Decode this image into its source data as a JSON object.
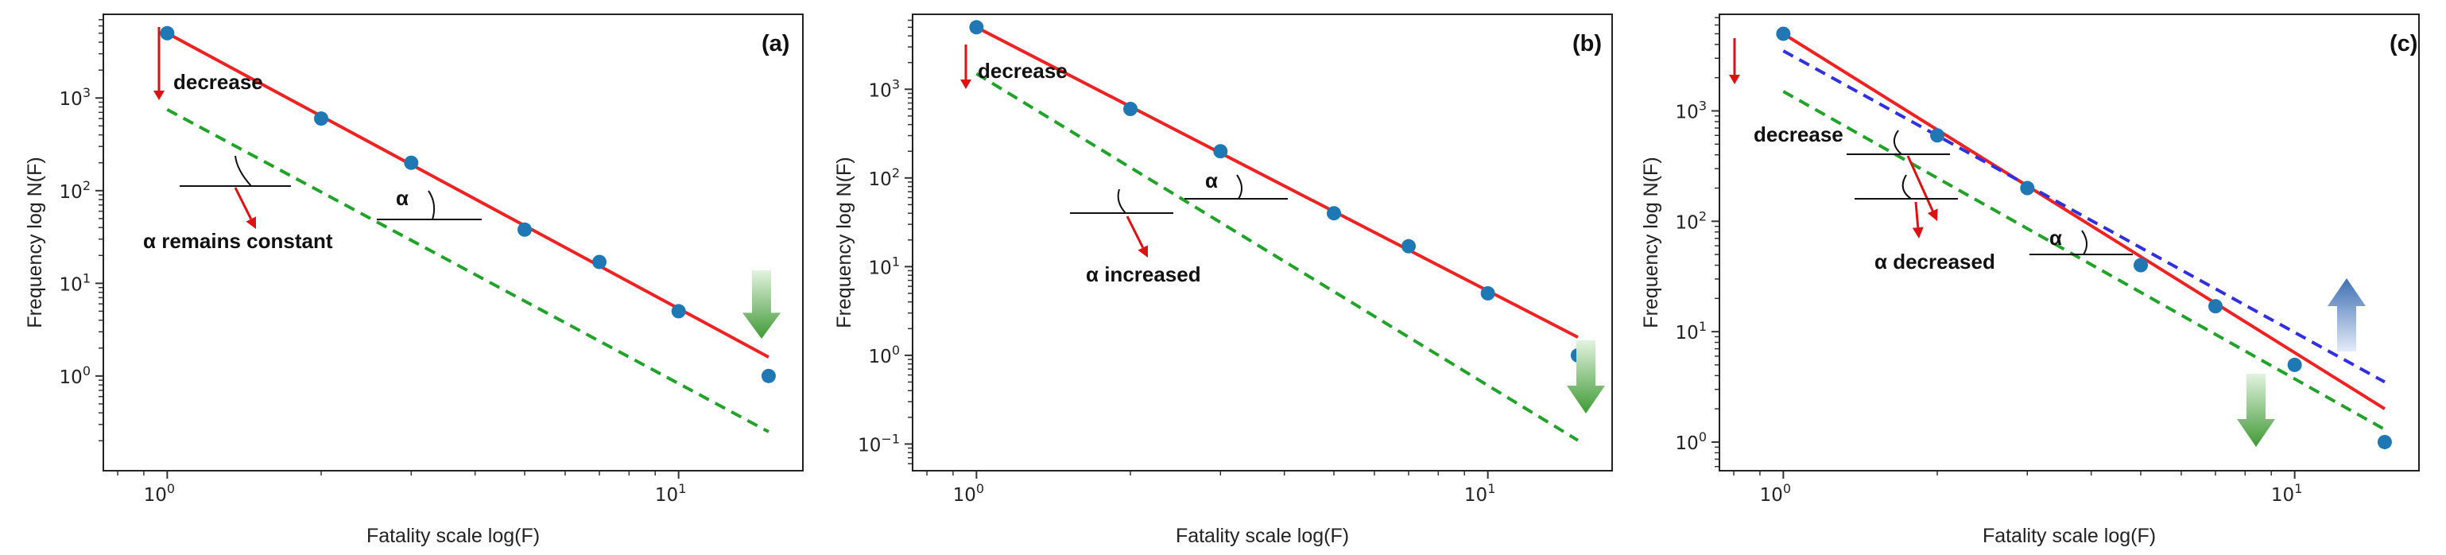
{
  "figure": {
    "colors": {
      "points": "#1f77b4",
      "fit_line": "#ee2222",
      "shifted_line": "#22a22a",
      "blue_line": "#3030dd",
      "annot_arrow": "#dd1111"
    }
  },
  "chart_data": [
    {
      "type": "scatter",
      "panel": "(a)",
      "xlabel": "Fatality scale log(F)",
      "ylabel": "Frequency log N(F)",
      "xscale": "log",
      "yscale": "log",
      "xlim": [
        0.75,
        17.5
      ],
      "ylim": [
        0.095,
        8000
      ],
      "x_ticks": [
        {
          "value": 1,
          "base": "10",
          "exp": "0"
        },
        {
          "value": 10,
          "base": "10",
          "exp": "1"
        }
      ],
      "y_ticks": [
        {
          "value": 1,
          "base": "10",
          "exp": "0"
        },
        {
          "value": 10,
          "base": "10",
          "exp": "1"
        },
        {
          "value": 100,
          "base": "10",
          "exp": "2"
        },
        {
          "value": 1000,
          "base": "10",
          "exp": "3"
        }
      ],
      "points": {
        "x": [
          1,
          2,
          3,
          5,
          7,
          10,
          15
        ],
        "y": [
          5000,
          600,
          200,
          38,
          17,
          5,
          1
        ]
      },
      "lines": [
        {
          "name": "fit",
          "style": "solid",
          "color": "fit_line",
          "x": [
            1,
            15
          ],
          "y": [
            5000,
            1.6
          ]
        },
        {
          "name": "shifted",
          "style": "dashed",
          "color": "shifted_line",
          "x": [
            1,
            15
          ],
          "y": [
            750,
            0.25
          ]
        }
      ],
      "annotations": {
        "decrease": "decrease",
        "alpha_note": "α remains constant",
        "alpha": "α"
      }
    },
    {
      "type": "scatter",
      "panel": "(b)",
      "xlabel": "Fatality scale log(F)",
      "ylabel": "Frequency log N(F)",
      "xscale": "log",
      "yscale": "log",
      "xlim": [
        0.75,
        17.5
      ],
      "ylim": [
        0.05,
        7000
      ],
      "x_ticks": [
        {
          "value": 1,
          "base": "10",
          "exp": "0"
        },
        {
          "value": 10,
          "base": "10",
          "exp": "1"
        }
      ],
      "y_ticks": [
        {
          "value": 0.1,
          "base": "10",
          "exp": "−1"
        },
        {
          "value": 1,
          "base": "10",
          "exp": "0"
        },
        {
          "value": 10,
          "base": "10",
          "exp": "1"
        },
        {
          "value": 100,
          "base": "10",
          "exp": "2"
        },
        {
          "value": 1000,
          "base": "10",
          "exp": "3"
        }
      ],
      "points": {
        "x": [
          1,
          2,
          3,
          5,
          7,
          10,
          15
        ],
        "y": [
          5000,
          600,
          200,
          40,
          17,
          5,
          1
        ]
      },
      "lines": [
        {
          "name": "fit",
          "style": "solid",
          "color": "fit_line",
          "x": [
            1,
            15
          ],
          "y": [
            5000,
            1.6
          ]
        },
        {
          "name": "shifted",
          "style": "dashed",
          "color": "shifted_line",
          "x": [
            1,
            15
          ],
          "y": [
            1500,
            0.11
          ]
        }
      ],
      "annotations": {
        "decrease": "decrease",
        "alpha_note": "α increased",
        "alpha": "α"
      }
    },
    {
      "type": "scatter",
      "panel": "(c)",
      "xlabel": "Fatality scale log(F)",
      "ylabel": "Frequency log N(F)",
      "xscale": "log",
      "yscale": "log",
      "xlim": [
        0.75,
        17.5
      ],
      "ylim": [
        0.55,
        7500
      ],
      "x_ticks": [
        {
          "value": 1,
          "base": "10",
          "exp": "0"
        },
        {
          "value": 10,
          "base": "10",
          "exp": "1"
        }
      ],
      "y_ticks": [
        {
          "value": 1,
          "base": "10",
          "exp": "0"
        },
        {
          "value": 10,
          "base": "10",
          "exp": "1"
        },
        {
          "value": 100,
          "base": "10",
          "exp": "2"
        },
        {
          "value": 1000,
          "base": "10",
          "exp": "3"
        }
      ],
      "points": {
        "x": [
          1,
          2,
          3,
          5,
          7,
          10,
          15
        ],
        "y": [
          5000,
          600,
          200,
          40,
          17,
          5,
          1
        ]
      },
      "lines": [
        {
          "name": "fit",
          "style": "solid",
          "color": "fit_line",
          "x": [
            1,
            15
          ],
          "y": [
            5000,
            2.0
          ]
        },
        {
          "name": "shifted",
          "style": "dashed",
          "color": "shifted_line",
          "x": [
            1,
            15
          ],
          "y": [
            1500,
            1.3
          ]
        },
        {
          "name": "blue",
          "style": "dashed",
          "color": "blue_line",
          "x": [
            1,
            15
          ],
          "y": [
            3500,
            3.5
          ]
        }
      ],
      "annotations": {
        "decrease": "decrease",
        "alpha_note": "α decreased",
        "alpha": "α"
      }
    }
  ]
}
